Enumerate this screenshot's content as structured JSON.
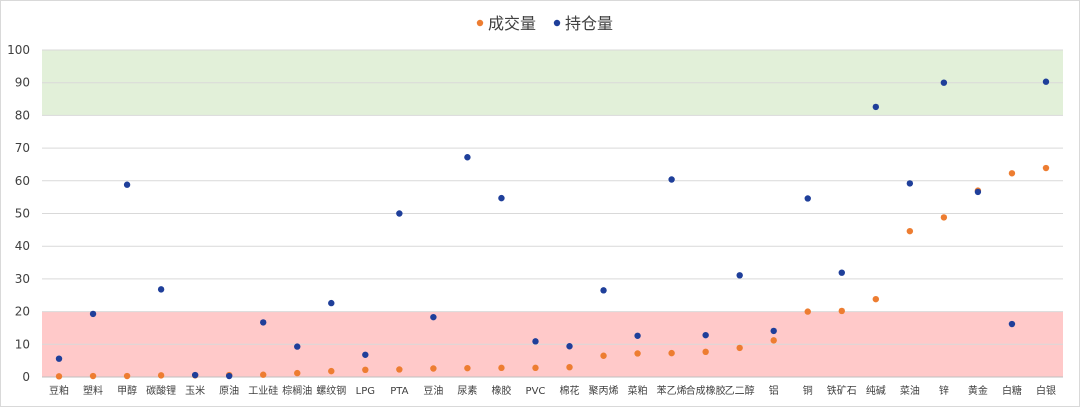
{
  "chart_data": {
    "type": "scatter",
    "title": "",
    "xlabel": "",
    "ylabel": "",
    "ylim": [
      0,
      100
    ],
    "yticks": [
      0,
      10,
      20,
      30,
      40,
      50,
      60,
      70,
      80,
      90,
      100
    ],
    "grid": "horizontal",
    "legend_position": "top-center",
    "bands": [
      {
        "from": 80,
        "to": 100,
        "color": "#e2f0d9"
      },
      {
        "from": 0,
        "to": 20,
        "color": "#ffc9c9"
      }
    ],
    "categories": [
      "豆粕",
      "塑料",
      "甲醇",
      "碳酸锂",
      "玉米",
      "原油",
      "工业硅",
      "棕榈油",
      "螺纹钢",
      "LPG",
      "PTA",
      "豆油",
      "尿素",
      "橡胶",
      "PVC",
      "棉花",
      "聚丙烯",
      "菜粕",
      "苯乙烯",
      "合成橡胶",
      "乙二醇",
      "铝",
      "铜",
      "铁矿石",
      "纯碱",
      "菜油",
      "锌",
      "黄金",
      "白糖",
      "白银"
    ],
    "series": [
      {
        "name": "成交量",
        "color": "#ed7d31",
        "values": [
          0.2,
          0.3,
          0.3,
          0.5,
          0.5,
          0.6,
          0.7,
          1.2,
          1.8,
          2.2,
          2.3,
          2.6,
          2.7,
          2.8,
          2.8,
          3.0,
          6.5,
          7.2,
          7.3,
          7.7,
          8.9,
          11.2,
          20.0,
          20.2,
          23.8,
          44.6,
          48.8,
          57.0,
          62.3,
          63.9
        ]
      },
      {
        "name": "持仓量",
        "color": "#1f3f9a",
        "values": [
          5.6,
          19.3,
          58.8,
          26.8,
          0.6,
          0.3,
          16.7,
          9.3,
          22.6,
          6.8,
          50.0,
          18.3,
          67.2,
          54.7,
          10.9,
          9.4,
          26.5,
          12.6,
          60.4,
          12.8,
          31.1,
          14.1,
          54.6,
          31.9,
          82.6,
          59.2,
          90.0,
          56.6,
          16.2,
          90.3
        ]
      }
    ]
  }
}
